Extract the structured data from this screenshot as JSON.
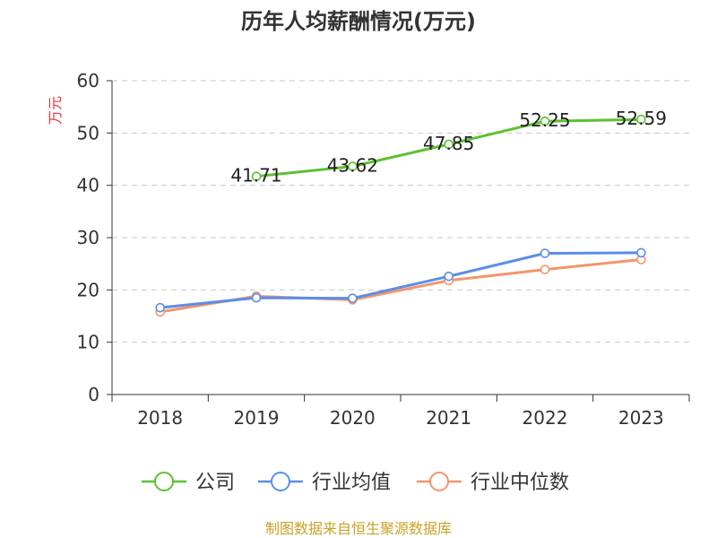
{
  "chart_data": {
    "type": "line",
    "title": "历年人均薪酬情况(万元)",
    "xlabel": "",
    "ylabel": "万元",
    "categories": [
      "2018",
      "2019",
      "2020",
      "2021",
      "2022",
      "2023"
    ],
    "ylim": [
      0,
      60
    ],
    "yticks": [
      0,
      10,
      20,
      30,
      40,
      50,
      60
    ],
    "grid": true,
    "legend_position": "bottom",
    "series": [
      {
        "name": "公司",
        "color": "#5cc130",
        "values": [
          null,
          41.71,
          43.62,
          47.85,
          52.25,
          52.59
        ],
        "labels": [
          "",
          "41.71",
          "43.62",
          "47.85",
          "52.25",
          "52.59"
        ]
      },
      {
        "name": "行业均值",
        "color": "#5b8ee6",
        "values": [
          16.6,
          18.5,
          18.4,
          22.6,
          27.0,
          27.1
        ],
        "labels": []
      },
      {
        "name": "行业中位数",
        "color": "#f4956b",
        "values": [
          15.8,
          18.8,
          18.1,
          21.8,
          23.9,
          25.8
        ],
        "labels": []
      }
    ]
  },
  "ylabel_color": "#e0393e",
  "source": {
    "text": "制图数据来自恒生聚源数据库",
    "color": "#c9a227"
  }
}
